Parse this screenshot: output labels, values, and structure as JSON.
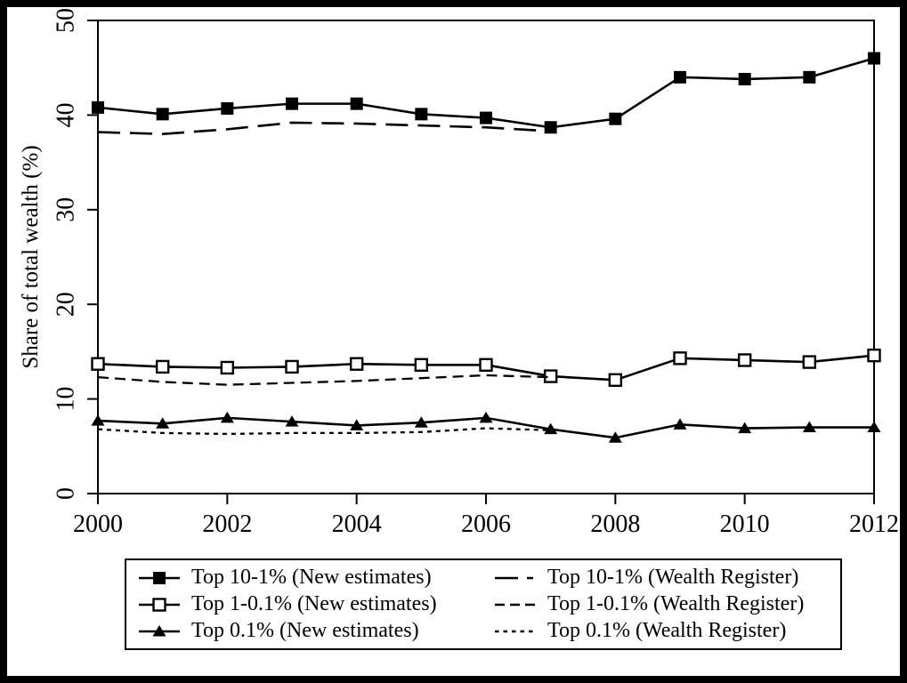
{
  "figure": {
    "background": "#ffffff",
    "ink_color": "#000000",
    "border": "black frame around figure"
  },
  "chart_data": {
    "type": "line",
    "title": "",
    "xlabel": "",
    "ylabel": "Share of total wealth (%)",
    "xlim": [
      2000,
      2012
    ],
    "ylim": [
      0,
      50
    ],
    "x_ticks": [
      2000,
      2002,
      2004,
      2006,
      2008,
      2010,
      2012
    ],
    "y_ticks": [
      0,
      10,
      20,
      30,
      40,
      50
    ],
    "grid": false,
    "legend_position": "bottom",
    "series": [
      {
        "name": "Top 10-1% (New estimates)",
        "line": "solid",
        "marker": "filled-square",
        "x": [
          2000,
          2001,
          2002,
          2003,
          2004,
          2005,
          2006,
          2007,
          2008,
          2009,
          2010,
          2011,
          2012
        ],
        "values": [
          40.8,
          40.1,
          40.7,
          41.2,
          41.2,
          40.1,
          39.7,
          38.7,
          39.6,
          44.0,
          43.8,
          44.0,
          46.0
        ]
      },
      {
        "name": "Top 10-1% (Wealth Register)",
        "line": "long-dash",
        "marker": "none",
        "x": [
          2000,
          2001,
          2002,
          2003,
          2004,
          2005,
          2006,
          2007
        ],
        "values": [
          38.2,
          38.0,
          38.5,
          39.2,
          39.1,
          38.9,
          38.7,
          38.3
        ]
      },
      {
        "name": "Top 1-0.1% (New estimates)",
        "line": "solid",
        "marker": "open-square",
        "x": [
          2000,
          2001,
          2002,
          2003,
          2004,
          2005,
          2006,
          2007,
          2008,
          2009,
          2010,
          2011,
          2012
        ],
        "values": [
          13.7,
          13.4,
          13.3,
          13.4,
          13.7,
          13.6,
          13.6,
          12.4,
          12.0,
          14.3,
          14.1,
          13.9,
          14.6
        ]
      },
      {
        "name": "Top 1-0.1% (Wealth Register)",
        "line": "medium-dash",
        "marker": "none",
        "x": [
          2000,
          2001,
          2002,
          2003,
          2004,
          2005,
          2006,
          2007
        ],
        "values": [
          12.3,
          11.8,
          11.5,
          11.7,
          11.9,
          12.2,
          12.5,
          12.3
        ]
      },
      {
        "name": "Top 0.1% (New estimates)",
        "line": "solid",
        "marker": "filled-triangle",
        "x": [
          2000,
          2001,
          2002,
          2003,
          2004,
          2005,
          2006,
          2007,
          2008,
          2009,
          2010,
          2011,
          2012
        ],
        "values": [
          7.7,
          7.4,
          8.0,
          7.6,
          7.2,
          7.5,
          8.0,
          6.8,
          5.9,
          7.3,
          6.9,
          7.0,
          7.0
        ]
      },
      {
        "name": "Top 0.1% (Wealth Register)",
        "line": "short-dash",
        "marker": "none",
        "x": [
          2000,
          2001,
          2002,
          2003,
          2004,
          2005,
          2006,
          2007
        ],
        "values": [
          6.8,
          6.4,
          6.3,
          6.4,
          6.4,
          6.5,
          6.9,
          6.7
        ]
      }
    ]
  }
}
